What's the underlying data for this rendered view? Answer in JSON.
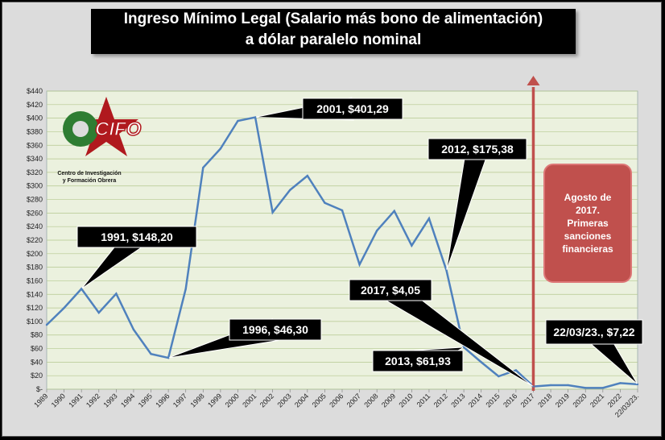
{
  "title": {
    "line1": "Ingreso Mínimo Legal (Salario más bono de alimentación)",
    "line2": "a dólar paralelo nominal"
  },
  "logo": {
    "text": "CIFO",
    "caption_line1": "Centro de Investigación",
    "caption_line2": "y Formación Obrera"
  },
  "annotation_box": {
    "text": "Agosto de\n2017.\nPrimeras\nsanciones\nfinancieras",
    "color": "#c0504d"
  },
  "colors": {
    "line": "#4f81bd",
    "plot_bg": "#ebf1de",
    "grid": "#b5c88f",
    "arrow": "#c0504d",
    "callout_bg": "#000000"
  },
  "chart_data": {
    "type": "line",
    "categories": [
      "1989",
      "1990",
      "1991",
      "1992",
      "1993",
      "1994",
      "1995",
      "1996",
      "1997",
      "1998",
      "1999",
      "2000",
      "2001",
      "2002",
      "2003",
      "2004",
      "2005",
      "2006",
      "2007",
      "2008",
      "2009",
      "2010",
      "2011",
      "2012",
      "2013",
      "2014",
      "2015",
      "2016",
      "2017",
      "2018",
      "2019",
      "2020",
      "2021",
      "2022",
      "22/03/23."
    ],
    "values": [
      95,
      120,
      148.2,
      113,
      141,
      88,
      52,
      46.3,
      148,
      327,
      355,
      396,
      401.29,
      261,
      294,
      315,
      275,
      264,
      184,
      234,
      263,
      212,
      252,
      175.38,
      61.93,
      40,
      19,
      28,
      4.05,
      6,
      6,
      2,
      2,
      9,
      7.22
    ],
    "ylim": [
      0,
      440
    ],
    "yticks": [
      "$-",
      "$20",
      "$40",
      "$60",
      "$80",
      "$100",
      "$120",
      "$140",
      "$160",
      "$180",
      "$200",
      "$220",
      "$240",
      "$260",
      "$280",
      "$300",
      "$320",
      "$340",
      "$360",
      "$380",
      "$400",
      "$420",
      "$440"
    ],
    "grid": true,
    "legend": "none",
    "annotations": [
      {
        "text": "1991,  $148,20",
        "index": 2
      },
      {
        "text": "1996,  $46,30",
        "index": 7
      },
      {
        "text": "2001,  $401,29",
        "index": 12
      },
      {
        "text": "2012,  $175,38",
        "index": 23
      },
      {
        "text": "2013,  $61,93",
        "index": 24
      },
      {
        "text": "2017,  $4,05",
        "index": 28
      },
      {
        "text": "22/03/23.,  $7,22",
        "index": 34
      }
    ]
  }
}
